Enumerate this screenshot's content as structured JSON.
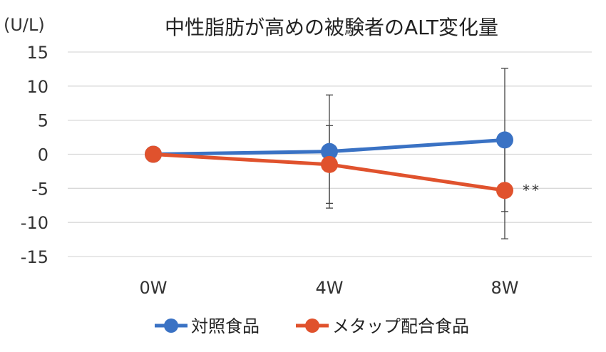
{
  "chart_data": {
    "type": "line",
    "title": "中性脂肪が高めの被験者のALT変化量",
    "unit_label": "(U/L)",
    "categories": [
      "0W",
      "4W",
      "8W"
    ],
    "ylim": [
      -15,
      15
    ],
    "yticks": [
      15,
      10,
      5,
      0,
      -5,
      -10,
      -15
    ],
    "grid": true,
    "legend_position": "bottom",
    "series": [
      {
        "name": "対照食品",
        "color": "#3a72c4",
        "values": [
          0,
          0.4,
          2.1
        ],
        "error_bars": [
          null,
          8.3,
          10.5
        ]
      },
      {
        "name": "メタップ配合食品",
        "color": "#e0522d",
        "values": [
          0,
          -1.5,
          -5.3
        ],
        "error_bars": [
          null,
          5.7,
          7.1
        ]
      }
    ],
    "annotations": [
      {
        "series": 1,
        "category": "8W",
        "text": "**"
      }
    ]
  }
}
